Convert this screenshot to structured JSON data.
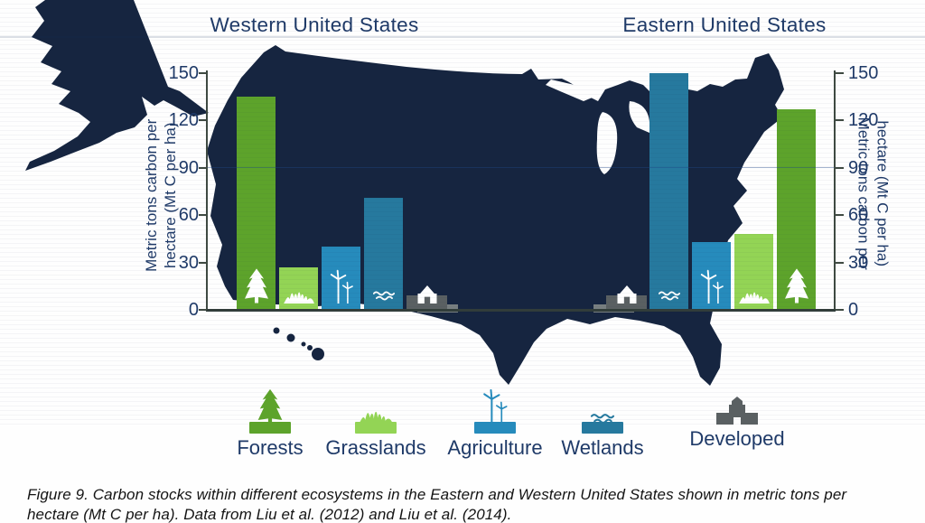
{
  "caption": {
    "text": "Figure 9. Carbon stocks within different ecosystems in the Eastern and Western United States shown in metric tons per hectare (Mt C per ha). Data from Liu et al. (2012) and Liu et al. (2014)."
  },
  "axis": {
    "label_line1": "Metric tons carbon per",
    "label_line2": "hectare (Mt C per ha)"
  },
  "chart_data": {
    "type": "bar",
    "groups": [
      {
        "id": "west",
        "label": "Western United States",
        "series": [
          {
            "category": "Forests",
            "value": 135
          },
          {
            "category": "Grasslands",
            "value": 27
          },
          {
            "category": "Agriculture",
            "value": 40
          },
          {
            "category": "Wetlands",
            "value": 71
          },
          {
            "category": "Developed",
            "value": 9
          }
        ]
      },
      {
        "id": "east",
        "label": "Eastern United States",
        "series": [
          {
            "category": "Developed",
            "value": 9
          },
          {
            "category": "Wetlands",
            "value": 150
          },
          {
            "category": "Agriculture",
            "value": 43
          },
          {
            "category": "Grasslands",
            "value": 48
          },
          {
            "category": "Forests",
            "value": 127
          }
        ]
      }
    ],
    "ylabel": "Metric tons carbon per hectare (Mt C per ha)",
    "yticks": [
      0,
      30,
      60,
      90,
      120,
      150
    ],
    "ylim": [
      0,
      150
    ],
    "units": "Mt C per ha",
    "grid": "single faint line at 90",
    "legend_position": "bottom",
    "colors": {
      "Forests": "#5da32b",
      "Grasslands": "#93d455",
      "Agriculture": "#268bbc",
      "Wetlands": "#26799e",
      "Developed": "#5a6062",
      "map": "#162540",
      "text_navy": "#1f3a68",
      "axis": "#3f4a42"
    }
  },
  "legend": {
    "items": [
      {
        "label": "Forests",
        "category": "Forests",
        "icon": "pine-tree-icon"
      },
      {
        "label": "Grasslands",
        "category": "Grasslands",
        "icon": "grass-icon"
      },
      {
        "label": "Agriculture",
        "category": "Agriculture",
        "icon": "wind-turbine-icon"
      },
      {
        "label": "Wetlands",
        "category": "Wetlands",
        "icon": "waves-icon"
      },
      {
        "label": "Developed",
        "category": "Developed",
        "icon": "house-icon"
      }
    ]
  }
}
